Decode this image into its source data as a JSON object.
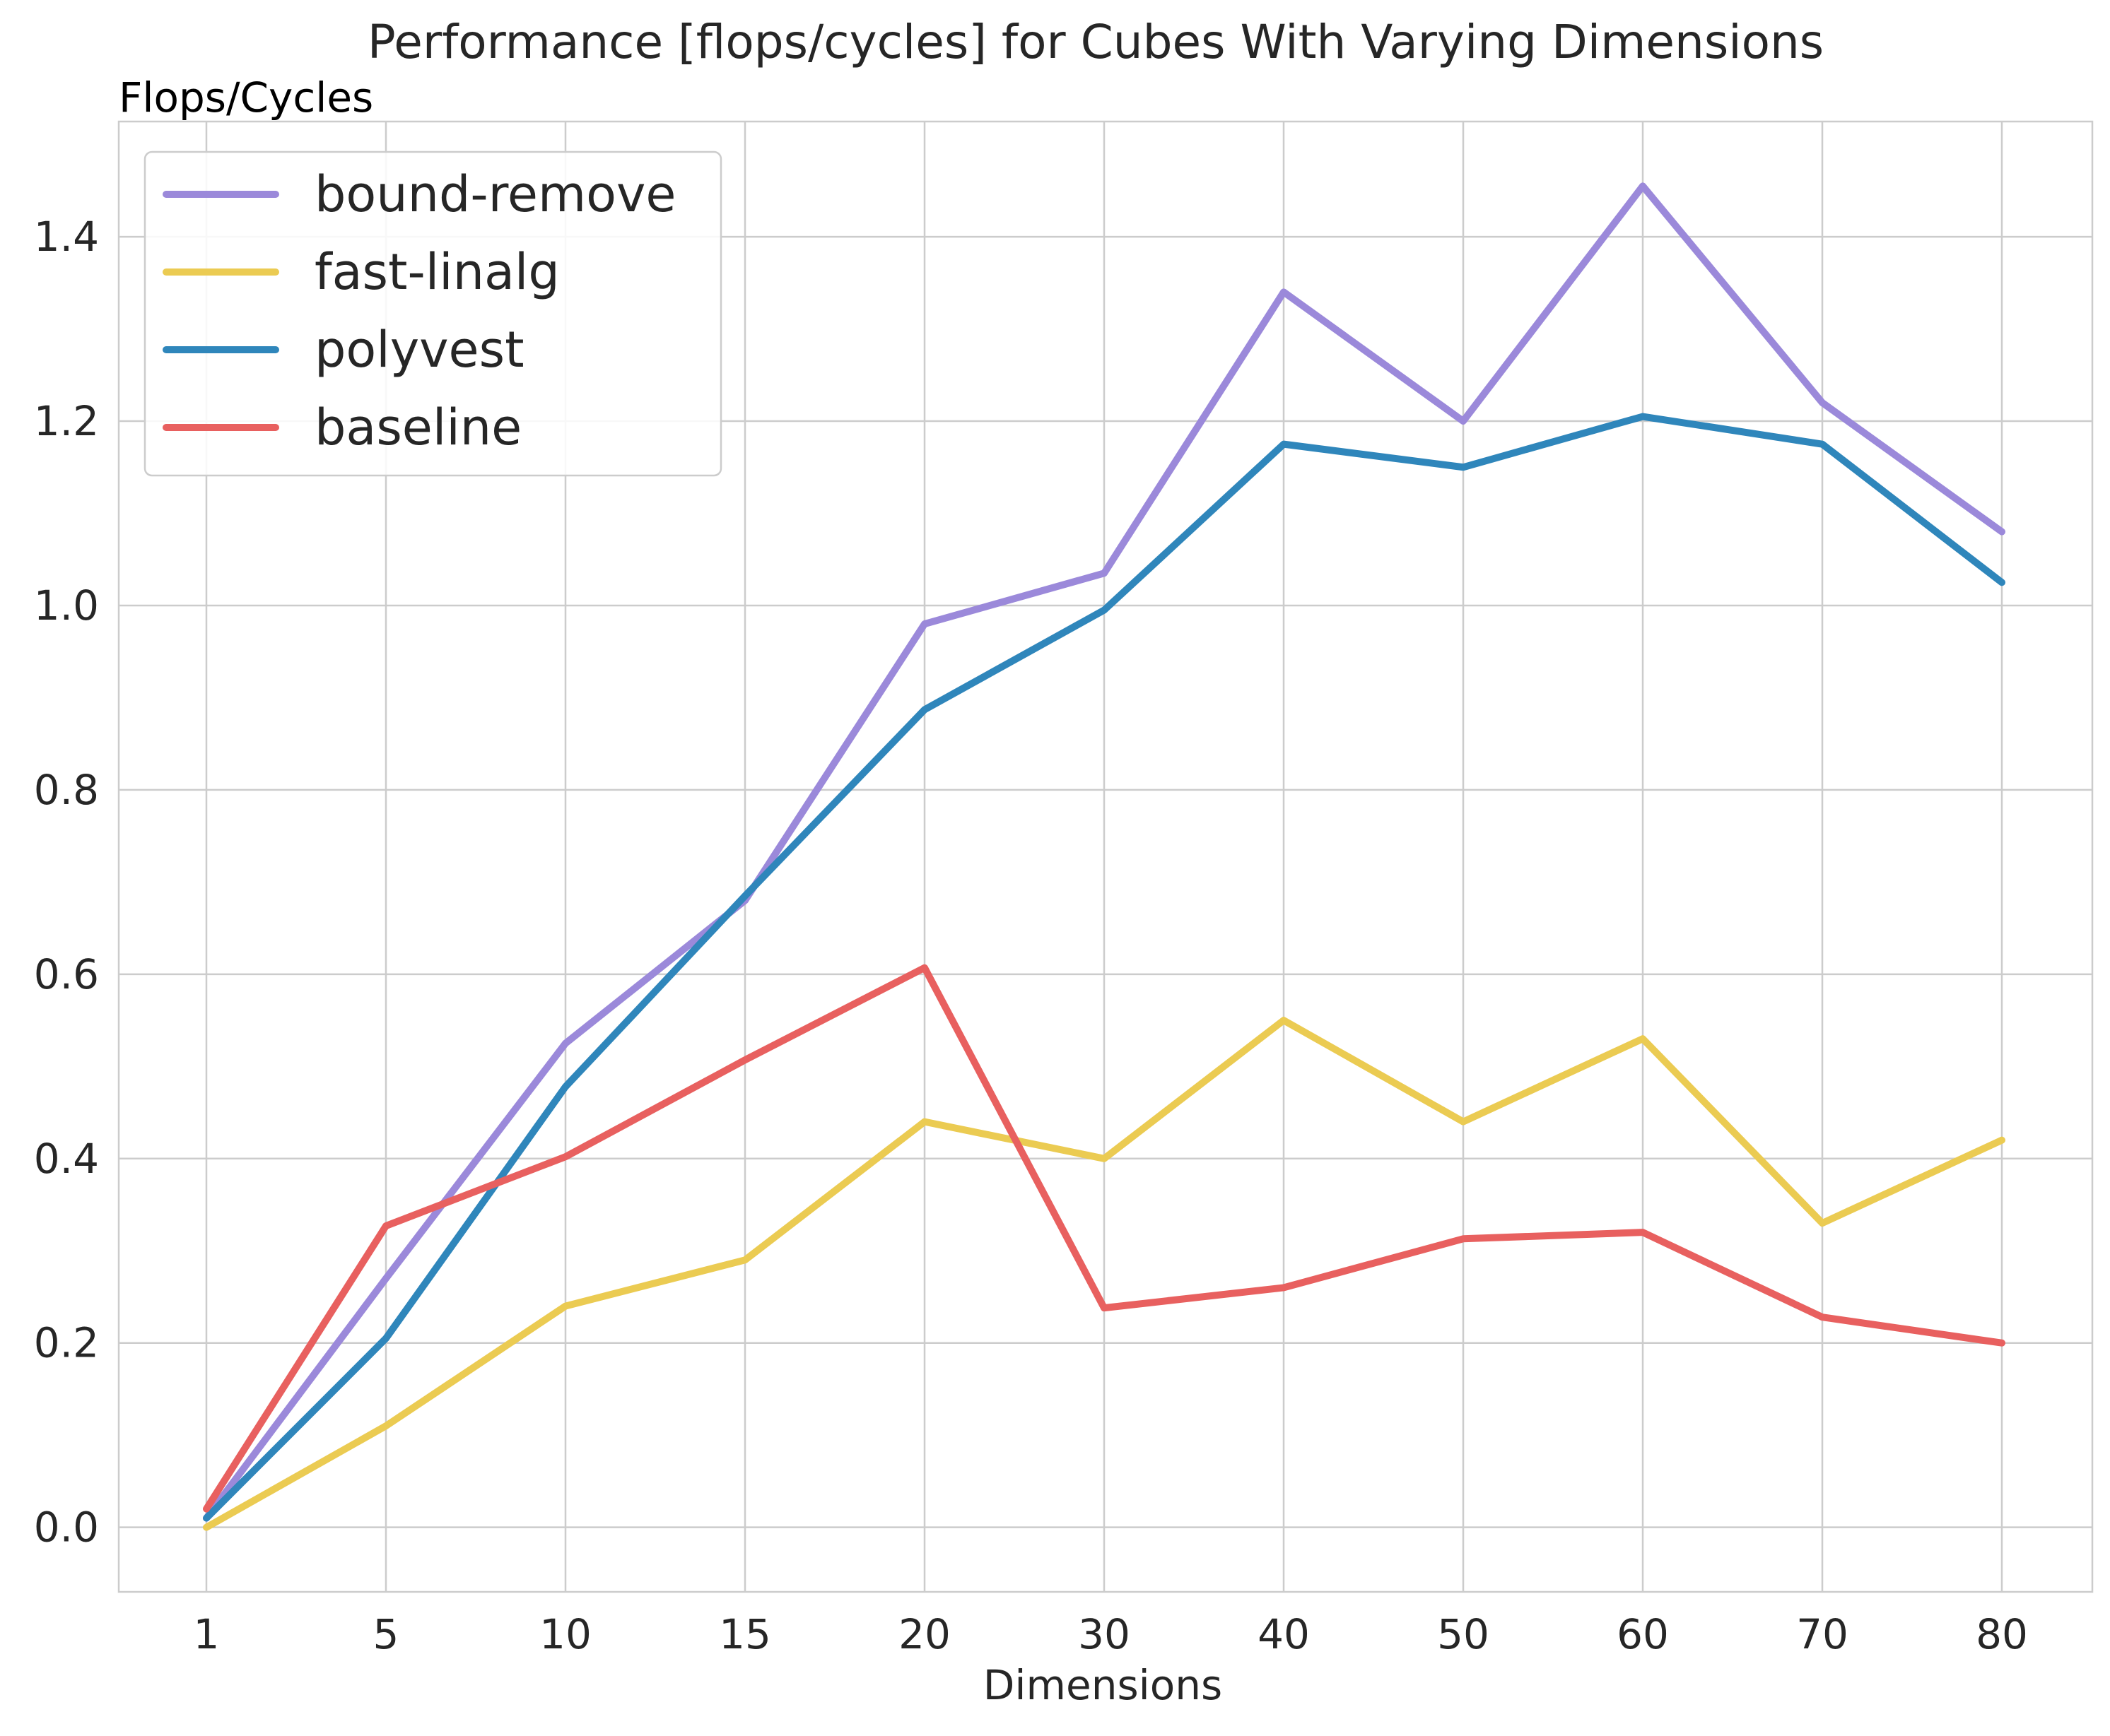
{
  "chart_data": {
    "type": "line",
    "title": "Performance [flops/cycles] for Cubes With Varying Dimensions",
    "ylabel": "Flops/Cycles",
    "xlabel": "Dimensions",
    "categories": [
      "1",
      "5",
      "10",
      "15",
      "20",
      "30",
      "40",
      "50",
      "60",
      "70",
      "80"
    ],
    "ylim": [
      -0.07,
      1.525
    ],
    "yticks": [
      "0.0",
      "0.2",
      "0.4",
      "0.6",
      "0.8",
      "1.0",
      "1.2",
      "1.4"
    ],
    "grid": true,
    "legend_position": "top-left",
    "series": [
      {
        "name": "bound-remove",
        "color": "#9b89da",
        "values": [
          0.01,
          0.27,
          0.525,
          0.68,
          0.98,
          1.035,
          1.34,
          1.2,
          1.455,
          1.22,
          1.08
        ]
      },
      {
        "name": "fast-linalg",
        "color": "#ebcb52",
        "values": [
          0.0,
          0.11,
          0.24,
          0.29,
          0.44,
          0.4,
          0.55,
          0.44,
          0.53,
          0.33,
          0.42
        ]
      },
      {
        "name": "polyvest",
        "color": "#2f86bb",
        "values": [
          0.01,
          0.205,
          0.478,
          0.685,
          0.887,
          0.995,
          1.175,
          1.15,
          1.205,
          1.175,
          1.025
        ]
      },
      {
        "name": "baseline",
        "color": "#e8605f",
        "values": [
          0.02,
          0.327,
          0.402,
          0.507,
          0.607,
          0.238,
          0.26,
          0.313,
          0.32,
          0.228,
          0.2
        ]
      }
    ]
  }
}
